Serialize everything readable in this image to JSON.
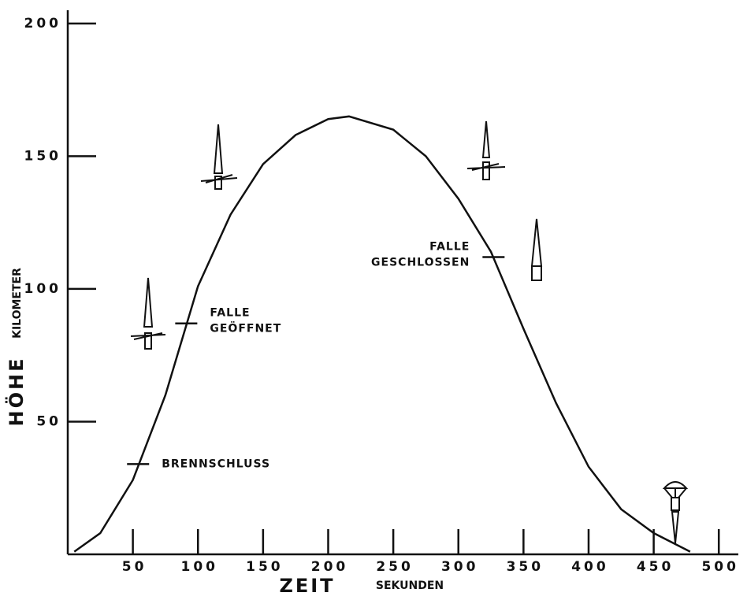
{
  "chart_data": {
    "type": "line",
    "x_label": "ZEIT",
    "x_unit": "SEKUNDEN",
    "y_label": "HÖHE",
    "y_unit": "KILOMETER",
    "x": [
      5,
      25,
      50,
      75,
      100,
      125,
      150,
      175,
      200,
      216,
      250,
      275,
      300,
      325,
      350,
      375,
      400,
      425,
      450,
      478
    ],
    "values": [
      1,
      8,
      28,
      60,
      101,
      128,
      147,
      158,
      164,
      165,
      160,
      150,
      134,
      114,
      85,
      57,
      33,
      17,
      8,
      1
    ],
    "color": "#111111",
    "xlim": [
      0,
      515
    ],
    "ylim": [
      0,
      205
    ],
    "xticks": [
      50,
      100,
      150,
      200,
      250,
      300,
      350,
      400,
      450,
      500
    ],
    "yticks": [
      50,
      100,
      150,
      200
    ],
    "grid": false,
    "annotations": [
      {
        "text": [
          "BRENNSCHLUSS"
        ],
        "x": 54,
        "y": 34
      },
      {
        "text": [
          "FALLE",
          "GEÖFFNET"
        ],
        "x": 91,
        "y": 87
      },
      {
        "text": [
          "FALLE",
          "GESCHLOSSEN"
        ],
        "x": 327,
        "y": 112
      }
    ]
  }
}
